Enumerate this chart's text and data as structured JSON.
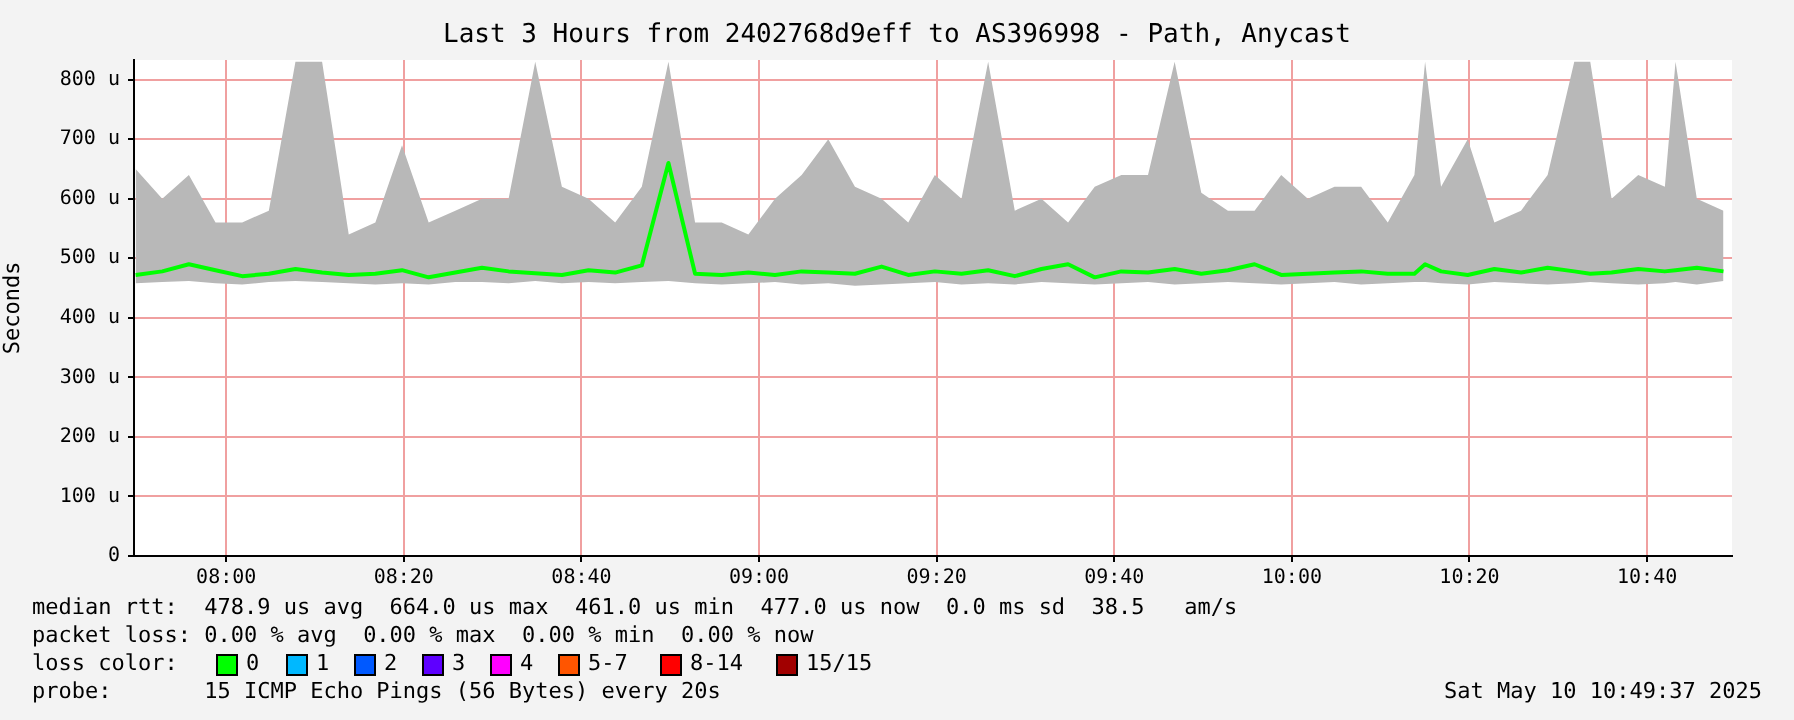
{
  "chart_data": {
    "type": "line",
    "title": "Last 3 Hours from 2402768d9eff to AS396998 - Path, Anycast",
    "ylabel": "Seconds",
    "x": [
      7.83,
      7.88,
      7.93,
      7.98,
      8.03,
      8.08,
      8.13,
      8.18,
      8.23,
      8.28,
      8.33,
      8.38,
      8.43,
      8.48,
      8.53,
      8.58,
      8.63,
      8.68,
      8.73,
      8.78,
      8.83,
      8.88,
      8.93,
      8.98,
      9.03,
      9.08,
      9.13,
      9.18,
      9.23,
      9.28,
      9.33,
      9.38,
      9.43,
      9.48,
      9.53,
      9.58,
      9.63,
      9.68,
      9.73,
      9.78,
      9.83,
      9.88,
      9.93,
      9.98,
      10.03,
      10.08,
      10.13,
      10.18,
      10.23,
      10.25,
      10.28,
      10.33,
      10.38,
      10.43,
      10.48,
      10.53,
      10.56,
      10.6,
      10.65,
      10.7,
      10.72,
      10.76,
      10.81
    ],
    "series": [
      {
        "color": "#00ff00",
        "values": [
          472,
          478,
          490,
          480,
          470,
          474,
          482,
          476,
          472,
          474,
          480,
          468,
          476,
          484,
          478,
          475,
          472,
          480,
          476,
          488,
          660,
          474,
          472,
          476,
          472,
          478,
          476,
          474,
          486,
          472,
          478,
          474,
          480,
          470,
          482,
          490,
          468,
          478,
          476,
          482,
          474,
          480,
          490,
          472,
          474,
          476,
          478,
          474,
          474,
          490,
          478,
          472,
          482,
          476,
          484,
          478,
          474,
          476,
          482,
          478,
          480,
          484,
          478
        ],
        "lower": [
          458,
          460,
          462,
          458,
          456,
          460,
          462,
          460,
          458,
          456,
          458,
          456,
          460,
          460,
          458,
          462,
          458,
          460,
          458,
          460,
          462,
          458,
          456,
          458,
          460,
          456,
          458,
          454,
          456,
          458,
          460,
          456,
          458,
          456,
          460,
          458,
          456,
          458,
          460,
          456,
          458,
          460,
          458,
          456,
          458,
          460,
          456,
          458,
          460,
          460,
          458,
          456,
          460,
          458,
          456,
          458,
          460,
          458,
          456,
          458,
          460,
          456,
          462
        ],
        "upper": [
          650,
          600,
          640,
          560,
          560,
          580,
          830,
          830,
          540,
          560,
          690,
          560,
          580,
          600,
          600,
          830,
          620,
          600,
          560,
          620,
          830,
          560,
          560,
          540,
          600,
          640,
          700,
          620,
          600,
          560,
          640,
          600,
          830,
          580,
          600,
          560,
          620,
          640,
          640,
          830,
          610,
          580,
          580,
          640,
          600,
          620,
          620,
          560,
          640,
          830,
          620,
          700,
          560,
          580,
          640,
          830,
          830,
          600,
          640,
          620,
          830,
          600,
          580
        ]
      }
    ],
    "xlim": [
      7.827,
      10.826
    ],
    "ylim": [
      0,
      833
    ],
    "xticks": [
      {
        "value": 8,
        "label": "08:00"
      },
      {
        "value": 8.3333,
        "label": "08:20"
      },
      {
        "value": 8.6667,
        "label": "08:40"
      },
      {
        "value": 9,
        "label": "09:00"
      },
      {
        "value": 9.3333,
        "label": "09:20"
      },
      {
        "value": 9.6667,
        "label": "09:40"
      },
      {
        "value": 10,
        "label": "10:00"
      },
      {
        "value": 10.3333,
        "label": "10:20"
      },
      {
        "value": 10.6667,
        "label": "10:40"
      }
    ],
    "yticks": [
      0,
      {
        "value": 100,
        "label": "100 u"
      },
      {
        "value": 200,
        "label": "200 u"
      },
      {
        "value": 300,
        "label": "300 u"
      },
      {
        "value": 400,
        "label": "400 u"
      },
      {
        "value": 500,
        "label": "500 u"
      },
      {
        "value": 600,
        "label": "600 u"
      },
      {
        "value": 700,
        "label": "700 u"
      },
      {
        "value": 800,
        "label": "800 u"
      }
    ],
    "grid": true,
    "marker": "none",
    "line_style": "solid",
    "annotations": [
      "median rtt:  478.9 us avg  664.0 us max  461.0 us min  477.0 us now  0.0 ms sd  38.5   am/s",
      "packet loss: 0.00 % avg  0.00 % max  0.00 % min  0.00 % now",
      "loss color:",
      "0",
      "1",
      "2",
      "3",
      "4",
      "5-7",
      "8-14",
      "15/15",
      "probe:       15 ICMP Echo Pings (56 Bytes) every 20s",
      "Sat May 10 10:49:37 2025"
    ]
  }
}
